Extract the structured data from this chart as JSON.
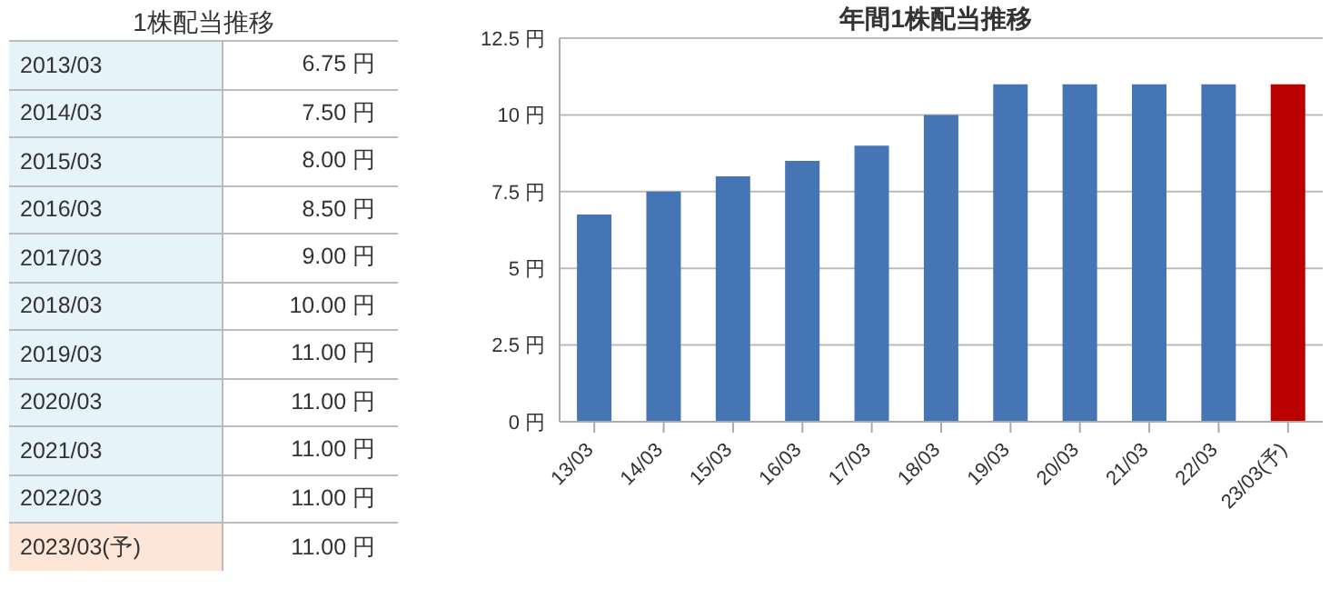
{
  "chart_data": [
    {
      "type": "other",
      "title": "1株配当推移",
      "categories": [
        "2013/03",
        "2014/03",
        "2015/03",
        "2016/03",
        "2017/03",
        "2018/03",
        "2019/03",
        "2020/03",
        "2021/03",
        "2022/03",
        "2023/03(予)"
      ],
      "value_labels": [
        "6.75 円",
        "7.50 円",
        "8.00 円",
        "8.50 円",
        "9.00 円",
        "10.00 円",
        "11.00 円",
        "11.00 円",
        "11.00 円",
        "11.00 円",
        "11.00 円"
      ],
      "colors": [
        "#e6f3f8",
        "#e6f3f8",
        "#e6f3f8",
        "#e6f3f8",
        "#e6f3f8",
        "#e6f3f8",
        "#e6f3f8",
        "#e6f3f8",
        "#e6f3f8",
        "#e6f3f8",
        "#fde5d8"
      ]
    },
    {
      "type": "bar",
      "title": "年間1株配当推移",
      "categories": [
        "13/03",
        "14/03",
        "15/03",
        "16/03",
        "17/03",
        "18/03",
        "19/03",
        "20/03",
        "21/03",
        "22/03",
        "23/03(予)"
      ],
      "values": [
        6.75,
        7.5,
        8,
        8.5,
        9,
        10,
        11,
        11,
        11,
        11,
        11
      ],
      "colors": [
        "#4675b5",
        "#4675b5",
        "#4675b5",
        "#4675b5",
        "#4675b5",
        "#4675b5",
        "#4675b5",
        "#4675b5",
        "#4675b5",
        "#4675b5",
        "#bb0000"
      ],
      "ylim": [
        0,
        12.5
      ],
      "yticks": [
        {
          "value": 0,
          "label": "0 円"
        },
        {
          "value": 2.5,
          "label": "2.5 円"
        },
        {
          "value": 5,
          "label": "5 円"
        },
        {
          "value": 7.5,
          "label": "7.5 円"
        },
        {
          "value": 10,
          "label": "10 円"
        },
        {
          "value": 12.5,
          "label": "12.5 円"
        }
      ],
      "grid": "y"
    }
  ]
}
